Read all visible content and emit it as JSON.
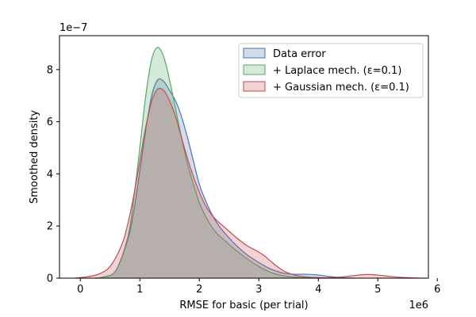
{
  "chart_data": {
    "type": "area",
    "title": "",
    "xlabel": "RMSE for basic (per trial)",
    "ylabel": "Smoothed density",
    "x_offset_label": "1e6",
    "y_offset_label": "1e−7",
    "xlim": [
      -0.35,
      5.85
    ],
    "ylim": [
      0,
      9.3
    ],
    "x_ticks": [
      0,
      1,
      2,
      3,
      4,
      5,
      6
    ],
    "x_tick_labels": [
      "0",
      "1",
      "2",
      "3",
      "4",
      "5",
      "6"
    ],
    "y_ticks": [
      0,
      2,
      4,
      6,
      8
    ],
    "y_tick_labels": [
      "0",
      "2",
      "4",
      "6",
      "8"
    ],
    "grid": false,
    "legend_position": "top-right",
    "series": [
      {
        "name": "Data error",
        "color": "#4c72b0",
        "fill": "#4c72b0",
        "x": [
          0.25,
          0.4,
          0.6,
          0.8,
          0.9,
          1.0,
          1.1,
          1.2,
          1.3,
          1.4,
          1.5,
          1.6,
          1.7,
          1.8,
          1.9,
          2.0,
          2.1,
          2.2,
          2.3,
          2.4,
          2.6,
          2.8,
          3.0,
          3.2,
          3.4,
          3.6,
          3.8,
          4.0,
          4.2,
          4.4,
          4.6
        ],
        "y": [
          0.0,
          0.05,
          0.3,
          1.5,
          2.6,
          4.1,
          5.7,
          7.0,
          7.6,
          7.55,
          7.2,
          6.8,
          6.2,
          5.4,
          4.5,
          3.6,
          3.0,
          2.5,
          2.1,
          1.8,
          1.3,
          0.9,
          0.6,
          0.35,
          0.2,
          0.15,
          0.15,
          0.12,
          0.06,
          0.02,
          0.0
        ]
      },
      {
        "name": "+ Laplace mech. (ε=0.1)",
        "color": "#55a868",
        "fill": "#55a868",
        "x": [
          0.25,
          0.4,
          0.6,
          0.8,
          0.9,
          1.0,
          1.1,
          1.2,
          1.3,
          1.4,
          1.5,
          1.6,
          1.7,
          1.8,
          1.9,
          2.0,
          2.1,
          2.2,
          2.3,
          2.4,
          2.6,
          2.8,
          3.0,
          3.2,
          3.4,
          3.6,
          3.8,
          4.0
        ],
        "y": [
          0.0,
          0.05,
          0.3,
          1.6,
          3.1,
          5.0,
          7.0,
          8.4,
          8.85,
          8.5,
          7.6,
          6.5,
          5.4,
          4.4,
          3.6,
          2.9,
          2.4,
          2.0,
          1.7,
          1.5,
          1.1,
          0.75,
          0.45,
          0.22,
          0.1,
          0.04,
          0.01,
          0.0
        ]
      },
      {
        "name": "+ Gaussian mech. (ε=0.1)",
        "color": "#c44e52",
        "fill": "#c44e52",
        "x": [
          -0.1,
          0.1,
          0.3,
          0.5,
          0.7,
          0.8,
          0.9,
          1.0,
          1.1,
          1.2,
          1.3,
          1.4,
          1.5,
          1.6,
          1.7,
          1.8,
          1.9,
          2.0,
          2.1,
          2.2,
          2.3,
          2.4,
          2.6,
          2.8,
          3.0,
          3.1,
          3.2,
          3.4,
          3.6,
          3.8,
          4.0,
          4.2,
          4.4,
          4.6,
          4.8,
          5.0,
          5.2,
          5.4,
          5.6,
          5.8
        ],
        "y": [
          0.0,
          0.05,
          0.15,
          0.45,
          1.3,
          2.1,
          3.2,
          4.5,
          5.8,
          6.8,
          7.25,
          7.2,
          6.8,
          6.2,
          5.4,
          4.6,
          3.9,
          3.3,
          2.8,
          2.45,
          2.2,
          2.0,
          1.6,
          1.25,
          1.0,
          0.85,
          0.65,
          0.3,
          0.12,
          0.05,
          0.02,
          0.02,
          0.05,
          0.1,
          0.14,
          0.12,
          0.07,
          0.03,
          0.01,
          0.0
        ]
      }
    ]
  }
}
